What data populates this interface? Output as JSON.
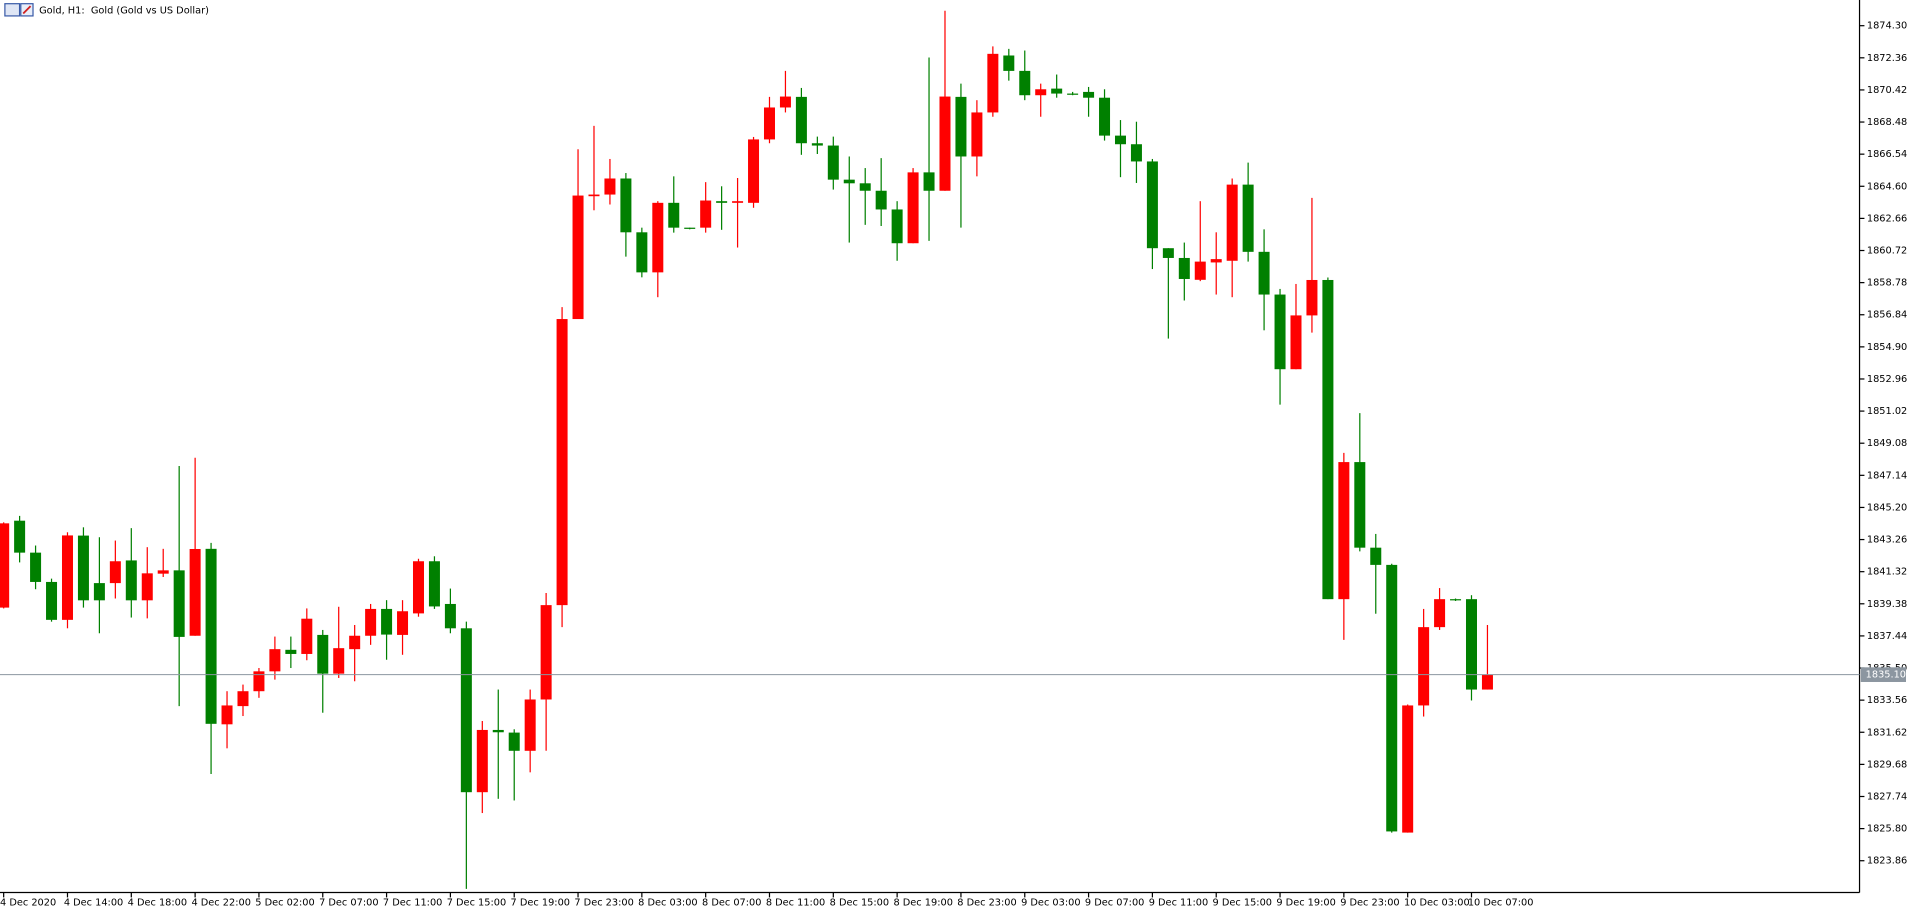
{
  "chart_data": {
    "type": "candlestick",
    "title": "Gold, H1:  Gold (Gold vs US Dollar)",
    "categories": [
      "4 Dec 2020",
      null,
      null,
      null,
      "4 Dec 14:00",
      null,
      null,
      null,
      "4 Dec 18:00",
      null,
      null,
      null,
      "4 Dec 22:00",
      null,
      null,
      null,
      "5 Dec 02:00",
      null,
      null,
      null,
      "7 Dec 07:00",
      null,
      null,
      null,
      "7 Dec 11:00",
      null,
      null,
      null,
      "7 Dec 15:00",
      null,
      null,
      null,
      "7 Dec 19:00",
      null,
      null,
      null,
      "7 Dec 23:00",
      null,
      null,
      null,
      "8 Dec 03:00",
      null,
      null,
      null,
      "8 Dec 07:00",
      null,
      null,
      null,
      "8 Dec 11:00",
      null,
      null,
      null,
      "8 Dec 15:00",
      null,
      null,
      null,
      "8 Dec 19:00",
      null,
      null,
      null,
      "8 Dec 23:00",
      null,
      null,
      null,
      "9 Dec 03:00",
      null,
      null,
      null,
      "9 Dec 07:00",
      null,
      null,
      null,
      "9 Dec 11:00",
      null,
      null,
      null,
      "9 Dec 15:00",
      null,
      null,
      null,
      "9 Dec 19:00",
      null,
      null,
      null,
      "9 Dec 23:00",
      null,
      null,
      null,
      "10 Dec 03:00",
      null,
      null,
      null,
      "10 Dec 07:00",
      null
    ],
    "open": [
      1839.15,
      1844.4,
      1842.47,
      1840.7,
      1838.41,
      1843.5,
      1840.63,
      1840.63,
      1842.0,
      1839.59,
      1841.2,
      1841.4,
      1837.45,
      1842.7,
      1832.1,
      1833.2,
      1834.1,
      1835.3,
      1836.6,
      1836.35,
      1837.5,
      1835.16,
      1836.64,
      1837.45,
      1839.07,
      1837.5,
      1838.8,
      1841.95,
      1839.37,
      1837.9,
      1828.0,
      1831.76,
      1831.6,
      1830.5,
      1833.6,
      1839.3,
      1856.58,
      1864.0,
      1864.1,
      1865.07,
      1861.82,
      1859.4,
      1863.6,
      1862.1,
      1862.1,
      1863.7,
      1863.6,
      1863.6,
      1867.43,
      1869.36,
      1870.0,
      1867.2,
      1867.06,
      1865.0,
      1864.78,
      1864.33,
      1863.2,
      1861.16,
      1865.44,
      1864.33,
      1870.0,
      1866.4,
      1869.06,
      1872.5,
      1871.57,
      1870.1,
      1870.5,
      1870.2,
      1870.3,
      1869.95,
      1867.66,
      1867.14,
      1866.1,
      1860.86,
      1860.27,
      1858.95,
      1860.0,
      1860.1,
      1864.7,
      1860.64,
      1858.06,
      1853.55,
      1856.8,
      1858.94,
      1839.66,
      1847.94,
      1842.77,
      1841.73,
      1825.56,
      1833.24,
      1837.97,
      1839.66,
      1839.66,
      1834.2
    ],
    "high": [
      1844.3,
      1844.69,
      1842.9,
      1840.9,
      1843.7,
      1844.0,
      1843.4,
      1843.2,
      1843.95,
      1842.8,
      1842.7,
      1847.7,
      1848.2,
      1843.06,
      1834.1,
      1834.5,
      1835.5,
      1837.4,
      1837.4,
      1839.1,
      1837.8,
      1839.2,
      1838.1,
      1839.37,
      1839.6,
      1839.6,
      1842.1,
      1842.25,
      1840.3,
      1838.3,
      1832.3,
      1834.2,
      1831.8,
      1834.2,
      1840.03,
      1857.3,
      1866.84,
      1868.25,
      1866.25,
      1865.4,
      1862.1,
      1863.7,
      1865.2,
      1862.1,
      1864.85,
      1864.6,
      1865.1,
      1867.58,
      1870.0,
      1871.57,
      1870.54,
      1867.6,
      1867.6,
      1866.4,
      1865.7,
      1866.3,
      1863.7,
      1865.7,
      1872.38,
      1875.2,
      1870.8,
      1869.8,
      1873.05,
      1872.9,
      1872.8,
      1870.8,
      1871.35,
      1870.3,
      1870.6,
      1870.46,
      1868.6,
      1868.5,
      1866.25,
      1860.86,
      1861.2,
      1863.7,
      1861.82,
      1865.07,
      1866.03,
      1862.0,
      1858.4,
      1858.7,
      1863.9,
      1859.09,
      1848.5,
      1850.9,
      1843.6,
      1841.8,
      1833.3,
      1839.07,
      1840.33,
      1839.7,
      1839.9,
      1838.1
    ],
    "low": [
      1839.1,
      1841.88,
      1840.26,
      1838.3,
      1837.9,
      1839.15,
      1837.6,
      1839.7,
      1838.55,
      1838.5,
      1841.0,
      1833.2,
      1837.45,
      1829.1,
      1830.65,
      1832.6,
      1833.7,
      1834.8,
      1835.5,
      1835.97,
      1832.8,
      1834.9,
      1834.7,
      1836.9,
      1836.0,
      1836.3,
      1838.6,
      1839.07,
      1837.6,
      1822.16,
      1826.74,
      1827.6,
      1827.5,
      1829.2,
      1830.5,
      1837.97,
      1856.58,
      1863.15,
      1863.5,
      1860.35,
      1859.1,
      1857.9,
      1861.8,
      1862.0,
      1861.8,
      1861.97,
      1860.9,
      1863.3,
      1867.2,
      1869.06,
      1866.5,
      1866.55,
      1864.4,
      1861.2,
      1862.27,
      1862.2,
      1860.1,
      1861.16,
      1861.3,
      1864.33,
      1862.1,
      1865.2,
      1868.8,
      1870.98,
      1869.8,
      1868.8,
      1869.95,
      1870.1,
      1868.8,
      1867.36,
      1865.15,
      1864.8,
      1859.6,
      1855.4,
      1857.7,
      1858.87,
      1858.06,
      1857.9,
      1860.05,
      1855.9,
      1851.41,
      1853.55,
      1855.76,
      1839.66,
      1837.2,
      1842.55,
      1838.78,
      1825.56,
      1825.56,
      1832.57,
      1837.8,
      1839.55,
      1833.54,
      1834.2
    ],
    "close": [
      1844.24,
      1842.47,
      1840.7,
      1838.41,
      1843.51,
      1839.59,
      1839.59,
      1841.95,
      1839.59,
      1841.22,
      1841.4,
      1837.38,
      1842.69,
      1832.13,
      1833.24,
      1834.1,
      1835.3,
      1836.64,
      1836.35,
      1838.48,
      1835.16,
      1836.7,
      1837.45,
      1839.07,
      1837.52,
      1838.93,
      1841.95,
      1839.22,
      1837.9,
      1828.0,
      1831.76,
      1831.62,
      1830.5,
      1833.6,
      1839.3,
      1856.58,
      1864.04,
      1864.1,
      1865.07,
      1861.82,
      1859.4,
      1863.6,
      1862.1,
      1862.05,
      1863.74,
      1863.6,
      1863.7,
      1867.43,
      1869.36,
      1870.02,
      1867.2,
      1867.06,
      1865.0,
      1864.78,
      1864.33,
      1863.2,
      1861.16,
      1865.44,
      1864.33,
      1870.02,
      1866.4,
      1869.06,
      1872.6,
      1871.57,
      1870.1,
      1870.46,
      1870.2,
      1870.15,
      1869.95,
      1867.66,
      1867.14,
      1866.1,
      1860.86,
      1860.27,
      1859.0,
      1860.05,
      1860.2,
      1864.7,
      1860.64,
      1858.06,
      1853.55,
      1856.8,
      1858.94,
      1839.66,
      1847.94,
      1842.77,
      1841.73,
      1825.63,
      1833.24,
      1837.97,
      1839.66,
      1839.6,
      1834.2,
      1835.1
    ],
    "up_color": "#ff0000",
    "down_color": "#008000",
    "ylim": [
      1821.94,
      1875.85
    ],
    "yticks": [
      1823.86,
      {
        "value": 1825.8,
        "label": "1825.80"
      },
      1827.74,
      1829.68,
      1831.62,
      1833.56,
      {
        "value": 1835.5,
        "label": "1835.50"
      },
      1837.44,
      1839.38,
      1841.32,
      1843.26,
      {
        "value": 1845.2,
        "label": "1845.20"
      },
      1847.14,
      1849.08,
      1851.02,
      1852.96,
      {
        "value": 1854.9,
        "label": "1854.90"
      },
      1856.84,
      1858.78,
      1860.72,
      1862.66,
      {
        "value": 1864.6,
        "label": "1864.60"
      },
      1866.54,
      1868.48,
      1870.42,
      1872.36,
      {
        "value": 1874.3,
        "label": "1874.30"
      }
    ],
    "current_price": {
      "value": 1835.1,
      "label": "1835.10"
    },
    "current_price_color": "#8c96a0",
    "grid": false
  }
}
